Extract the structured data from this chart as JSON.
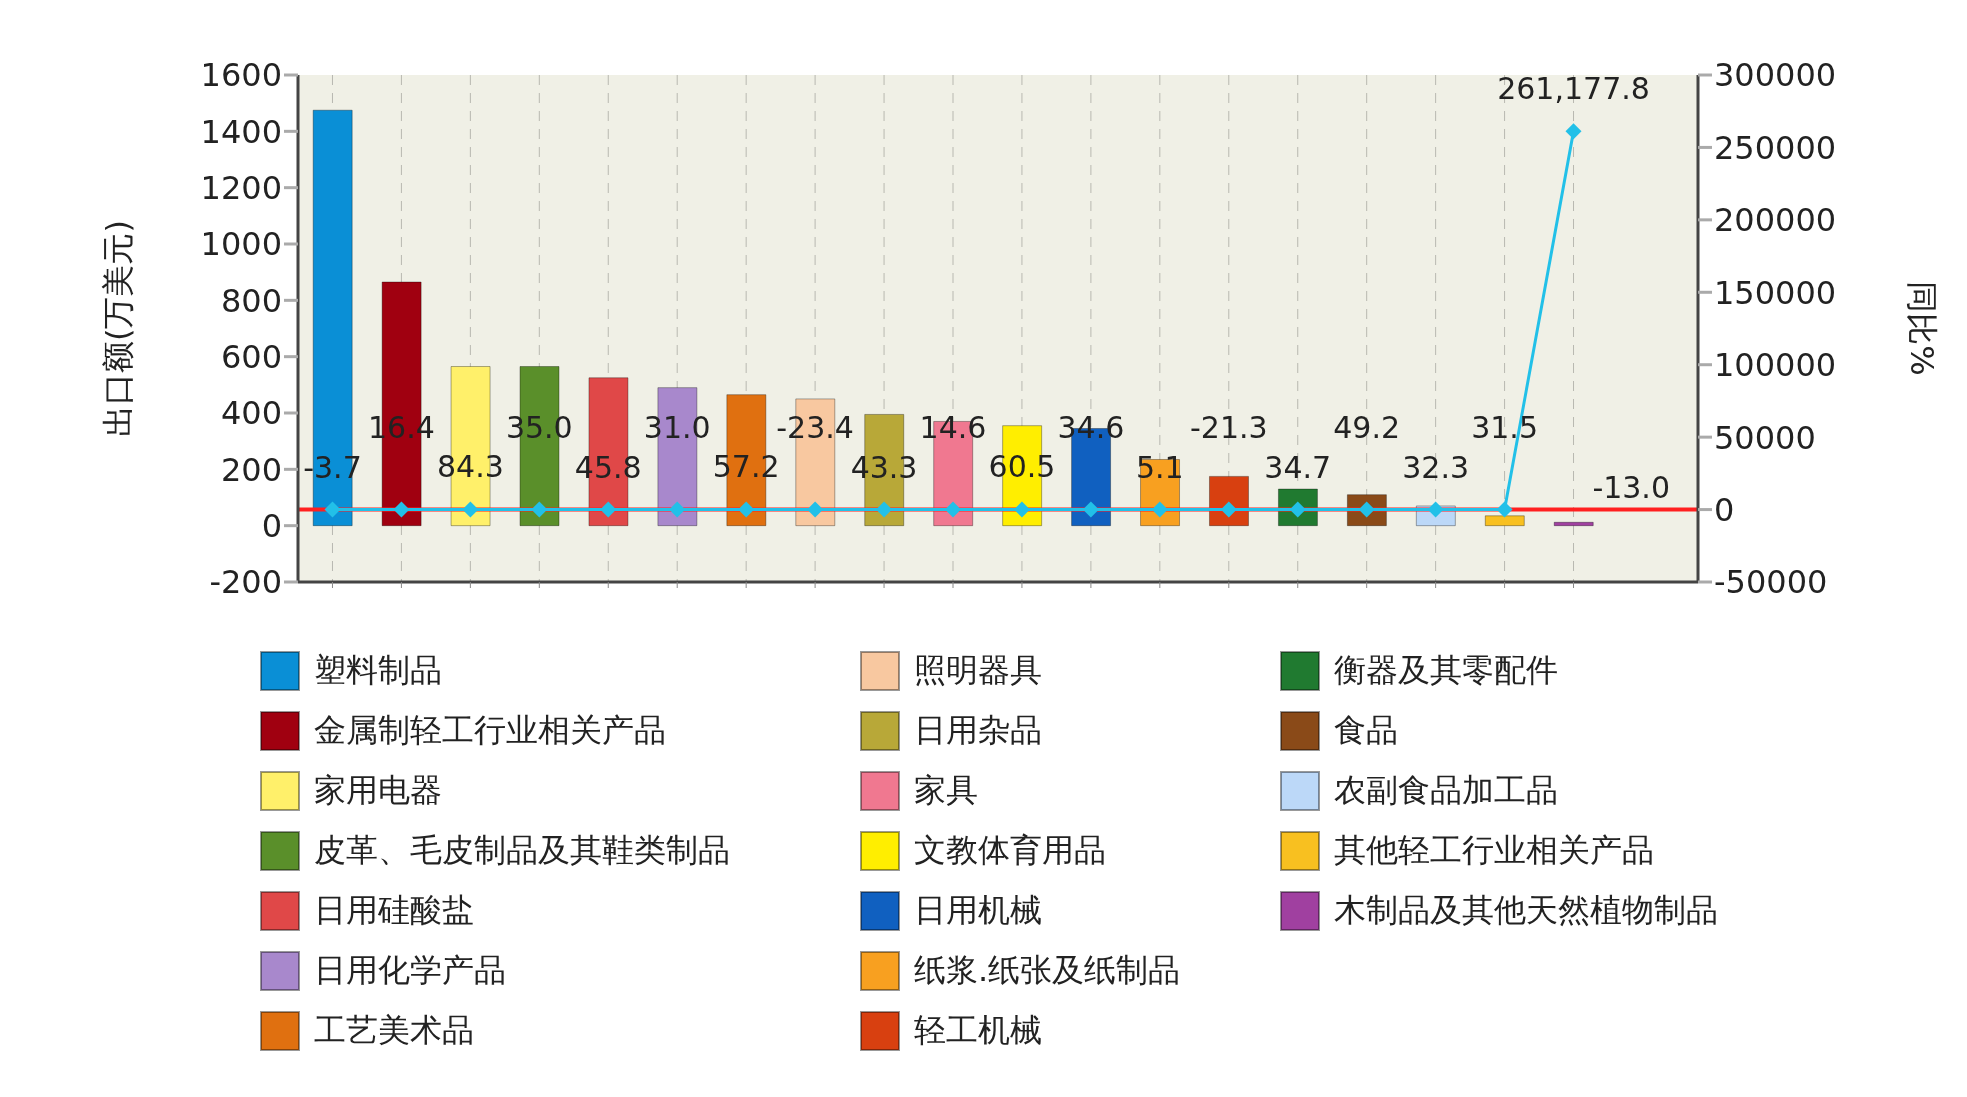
{
  "chart_data": {
    "type": "bar",
    "ylabel": "出口额(万美元)",
    "y2label": "同比%",
    "categories": [
      null,
      null,
      null,
      null,
      null,
      null,
      null,
      null,
      null,
      null,
      null,
      null,
      null,
      null,
      null,
      null,
      null,
      null,
      null
    ],
    "stacked": true,
    "series": [
      {
        "name": "塑料制品",
        "color": "#0a8fd6",
        "values": [
          1475,
          null,
          null,
          null,
          null,
          null,
          null,
          null,
          null,
          null,
          null,
          null,
          null,
          null,
          null,
          null,
          null,
          null,
          null
        ]
      },
      {
        "name": "金属制轻工行业相关产品",
        "color": "#a00010",
        "values": [
          null,
          865,
          null,
          null,
          null,
          null,
          null,
          null,
          null,
          null,
          null,
          null,
          null,
          null,
          null,
          null,
          null,
          null,
          null
        ]
      },
      {
        "name": "家用电器",
        "color": "#fff06a",
        "values": [
          null,
          null,
          565,
          null,
          null,
          null,
          null,
          null,
          null,
          null,
          null,
          null,
          null,
          null,
          null,
          null,
          null,
          null,
          null
        ]
      },
      {
        "name": "皮革、毛皮制品及其鞋类制品",
        "color": "#5a8f2a",
        "values": [
          null,
          null,
          null,
          565,
          null,
          null,
          null,
          null,
          null,
          null,
          null,
          null,
          null,
          null,
          null,
          null,
          null,
          null,
          null
        ]
      },
      {
        "name": "日用硅酸盐",
        "color": "#e04848",
        "values": [
          null,
          null,
          null,
          null,
          525,
          null,
          null,
          null,
          null,
          null,
          null,
          null,
          null,
          null,
          null,
          null,
          null,
          null,
          null
        ]
      },
      {
        "name": "日用化学产品",
        "color": "#a888cc",
        "values": [
          null,
          null,
          null,
          null,
          null,
          490,
          null,
          null,
          null,
          null,
          null,
          null,
          null,
          null,
          null,
          null,
          null,
          null,
          null
        ]
      },
      {
        "name": "工艺美术品",
        "color": "#e07010",
        "values": [
          null,
          null,
          null,
          null,
          null,
          null,
          465,
          null,
          null,
          null,
          null,
          null,
          null,
          null,
          null,
          null,
          null,
          null,
          null
        ]
      },
      {
        "name": "照明器具",
        "color": "#f8c8a0",
        "values": [
          null,
          null,
          null,
          null,
          null,
          null,
          null,
          450,
          null,
          null,
          null,
          null,
          null,
          null,
          null,
          null,
          null,
          null,
          null
        ]
      },
      {
        "name": "日用杂品",
        "color": "#b8a838",
        "values": [
          null,
          null,
          null,
          null,
          null,
          null,
          null,
          null,
          395,
          null,
          null,
          null,
          null,
          null,
          null,
          null,
          null,
          null,
          null
        ]
      },
      {
        "name": "家具",
        "color": "#f07890",
        "values": [
          null,
          null,
          null,
          null,
          null,
          null,
          null,
          null,
          null,
          370,
          null,
          null,
          null,
          null,
          null,
          null,
          null,
          null,
          null
        ]
      },
      {
        "name": "文教体育用品",
        "color": "#ffee00",
        "values": [
          null,
          null,
          null,
          null,
          null,
          null,
          null,
          null,
          null,
          null,
          355,
          null,
          null,
          null,
          null,
          null,
          null,
          null,
          null
        ]
      },
      {
        "name": "日用机械",
        "color": "#1060c0",
        "values": [
          null,
          null,
          null,
          null,
          null,
          null,
          null,
          null,
          null,
          null,
          null,
          345,
          null,
          null,
          null,
          null,
          null,
          null,
          null
        ]
      },
      {
        "name": "纸浆.纸张及纸制品",
        "color": "#f8a020",
        "values": [
          null,
          null,
          null,
          null,
          null,
          null,
          null,
          null,
          null,
          null,
          null,
          null,
          235,
          null,
          null,
          null,
          null,
          null,
          null
        ]
      },
      {
        "name": "轻工机械",
        "color": "#d84010",
        "values": [
          null,
          null,
          null,
          null,
          null,
          null,
          null,
          null,
          null,
          null,
          null,
          null,
          null,
          175,
          null,
          null,
          null,
          null,
          null
        ]
      },
      {
        "name": "衡器及其零配件",
        "color": "#207a30",
        "values": [
          null,
          null,
          null,
          null,
          null,
          null,
          null,
          null,
          null,
          null,
          null,
          null,
          null,
          null,
          130,
          null,
          null,
          null,
          null
        ]
      },
      {
        "name": "食品",
        "color": "#8a4a18",
        "values": [
          null,
          null,
          null,
          null,
          null,
          null,
          null,
          null,
          null,
          null,
          null,
          null,
          null,
          null,
          null,
          110,
          null,
          null,
          null
        ]
      },
      {
        "name": "农副食品加工品",
        "color": "#bcd8f8",
        "values": [
          null,
          null,
          null,
          null,
          null,
          null,
          null,
          null,
          null,
          null,
          null,
          null,
          null,
          null,
          null,
          null,
          70,
          null,
          null
        ]
      },
      {
        "name": "其他轻工行业相关产品",
        "color": "#f8c020",
        "values": [
          null,
          null,
          null,
          null,
          null,
          null,
          null,
          null,
          null,
          null,
          null,
          null,
          null,
          null,
          null,
          null,
          null,
          35,
          null
        ]
      },
      {
        "name": "木制品及其他天然植物制品",
        "color": "#a040a0",
        "values": [
          null,
          null,
          null,
          null,
          null,
          null,
          null,
          null,
          null,
          null,
          null,
          null,
          null,
          null,
          null,
          null,
          null,
          null,
          12
        ]
      },
      {
        "type": "line",
        "axis": "y2",
        "color": "#22c0e8",
        "marker": "diamond",
        "values": [
          -3.7,
          16.4,
          84.3,
          35.0,
          45.8,
          31.0,
          57.2,
          -23.4,
          43.3,
          14.6,
          60.5,
          34.6,
          5.1,
          -21.3,
          34.7,
          49.2,
          32.3,
          31.5,
          261177.8
        ],
        "value_labels": [
          "-3.7",
          "16.4",
          "84.3",
          "35.0",
          "45.8",
          "31.0",
          "57.2",
          "-23.4",
          "43.3",
          "14.6",
          "60.5",
          "34.6",
          "5.1",
          "-21.3",
          "34.7",
          "49.2",
          "32.3",
          "31.5",
          "261,177.8"
        ]
      }
    ],
    "ylim": [
      -200,
      1600
    ],
    "yticks": [
      -200,
      0,
      200,
      400,
      600,
      800,
      1000,
      1200,
      1400,
      1600
    ],
    "y2lim": [
      -50000,
      300000
    ],
    "y2ticks": [
      -50000,
      0,
      50000,
      100000,
      150000,
      200000,
      250000,
      300000
    ],
    "ref_lines": [
      {
        "axis": "y2",
        "value": 0,
        "color": "#ff2020"
      }
    ],
    "annotations": [
      "-13.0"
    ],
    "grid": "x",
    "legend": "bottom",
    "tick_labels": "y"
  }
}
